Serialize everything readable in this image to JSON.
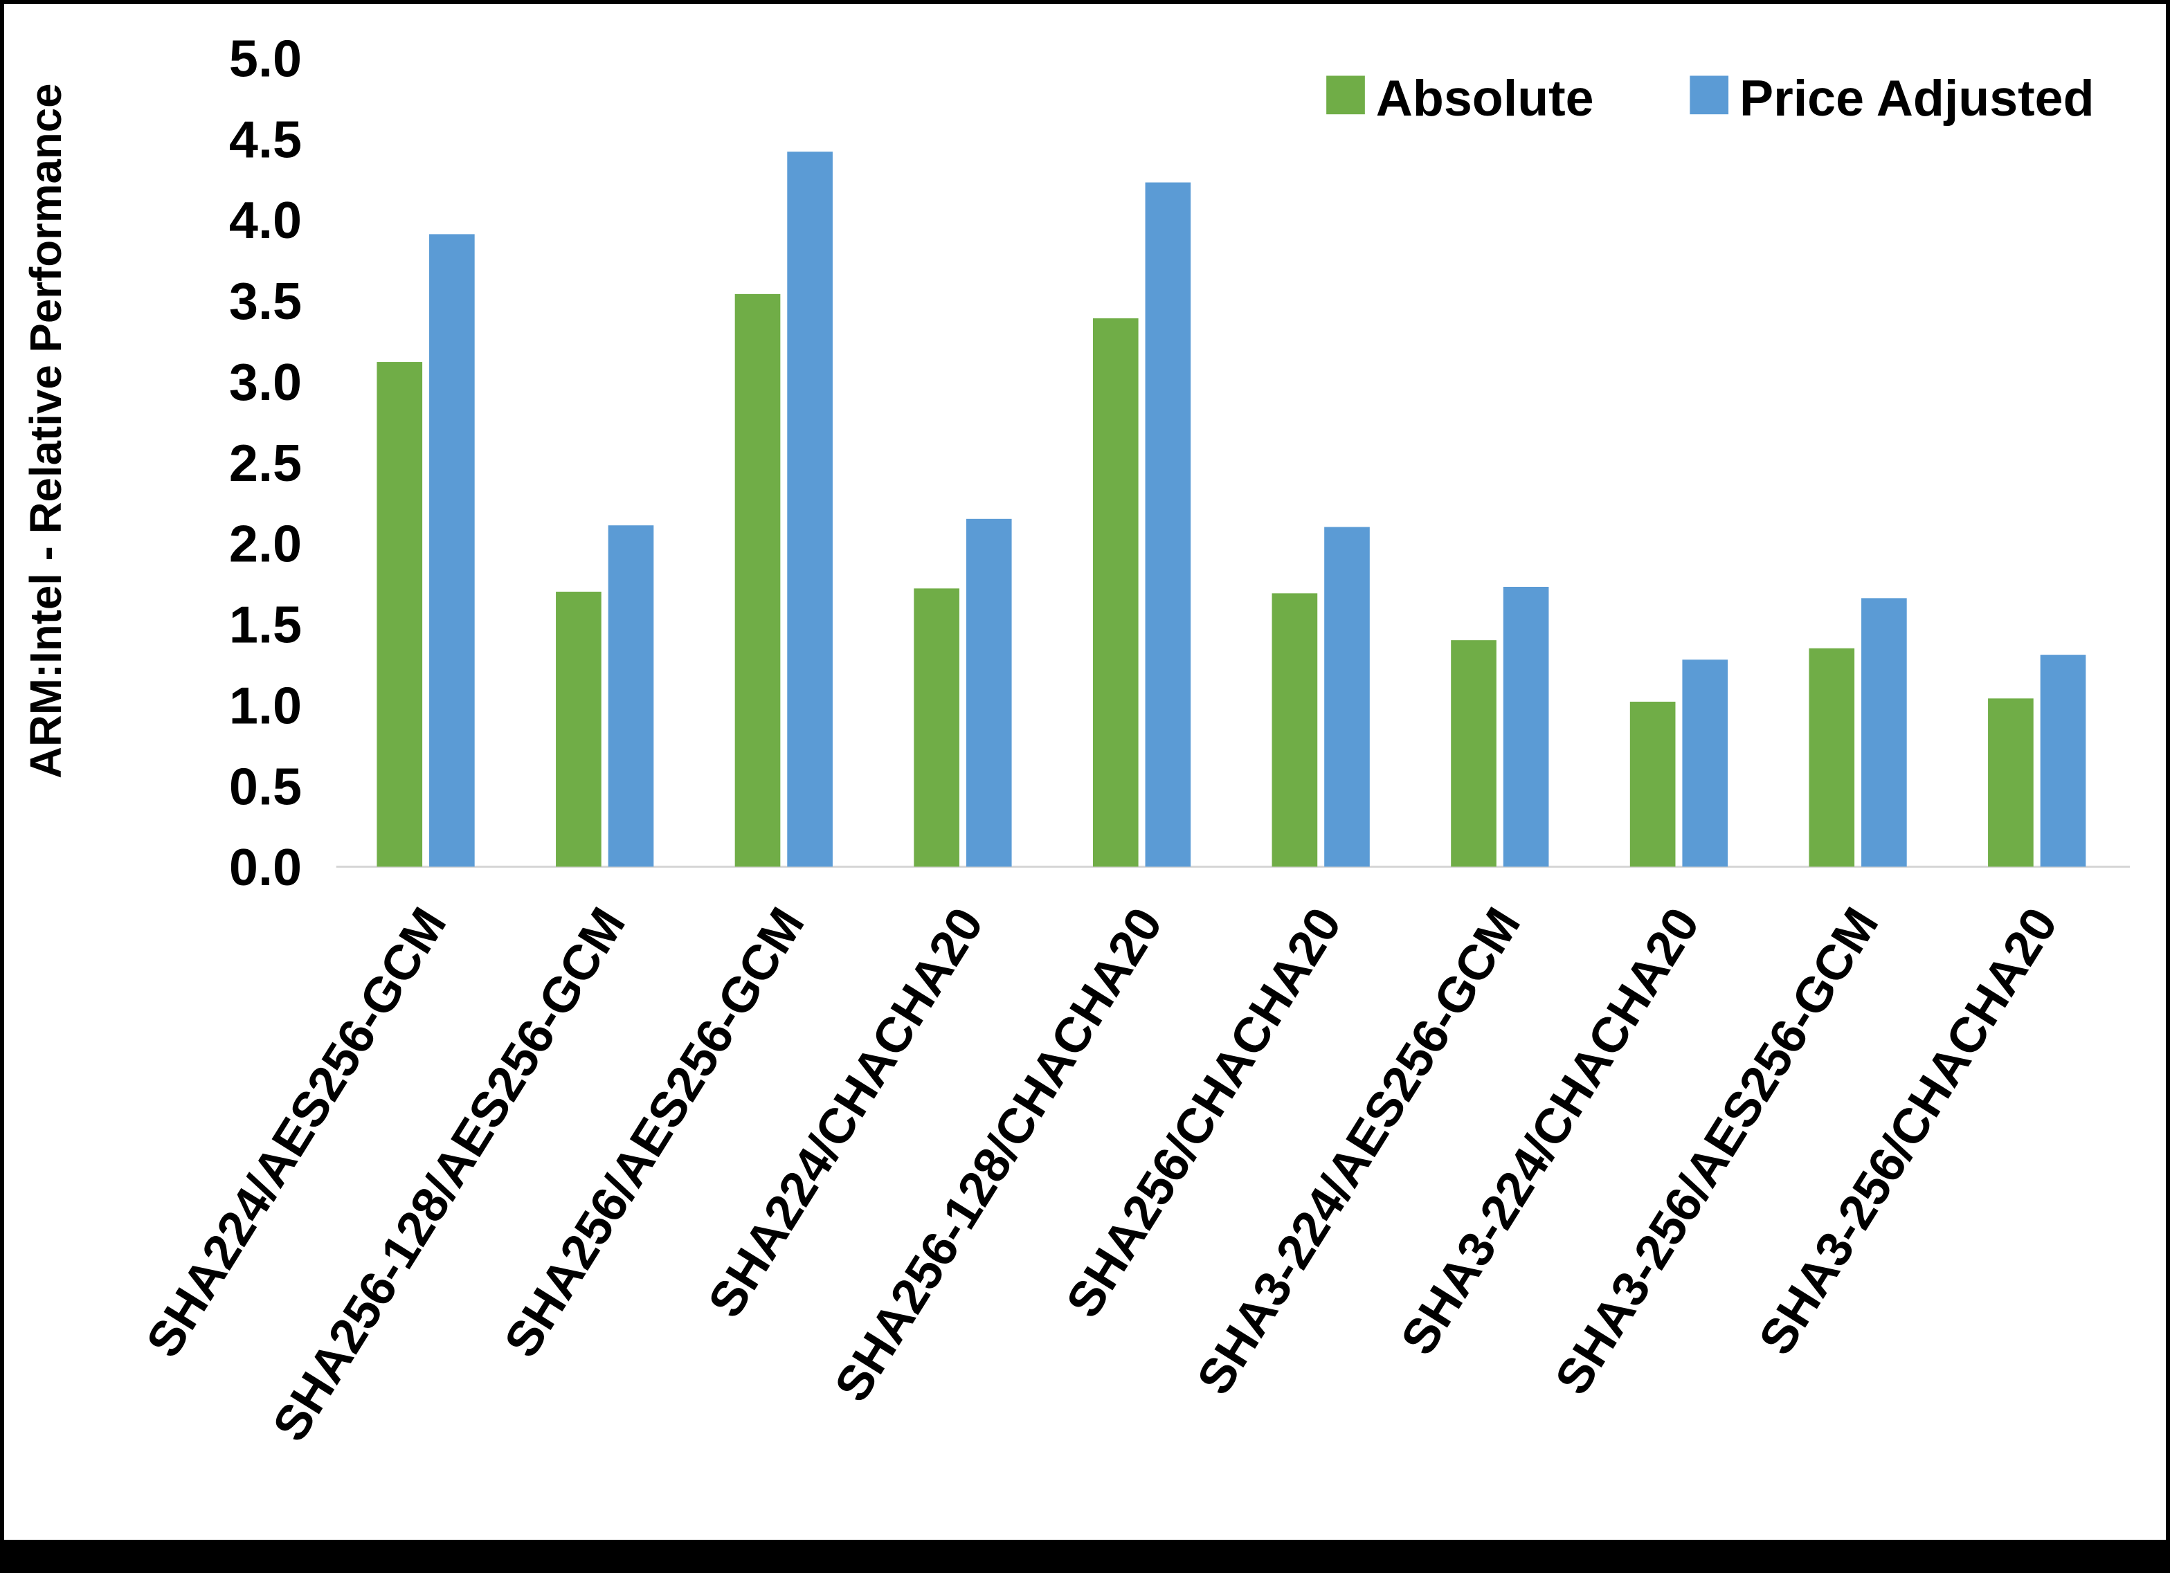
{
  "chart_data": {
    "type": "bar",
    "title": "",
    "ylabel": "ARM:Intel - Relative Performance",
    "xlabel": "",
    "ylim": [
      0.0,
      5.0
    ],
    "ytick_step": 0.5,
    "ytick_decimals": 1,
    "grid": false,
    "legend_position": "top-right",
    "axis_line_color": "#D6D6D6",
    "text_color": "#000000",
    "categories": [
      "SHA224/AES256-GCM",
      "SHA256-128/AES256-GCM",
      "SHA256/AES256-GCM",
      "SHA224/CHACHA20",
      "SHA256-128/CHACHA20",
      "SHA256/CHACHA20",
      "SHA3-224/AES256-GCM",
      "SHA3-224/CHACHA20",
      "SHA3-256/AES256-GCM",
      "SHA3-256/CHACHA20"
    ],
    "series": [
      {
        "name": "Absolute",
        "color": "#70AD47",
        "values": [
          3.12,
          1.7,
          3.54,
          1.72,
          3.39,
          1.69,
          1.4,
          1.02,
          1.35,
          1.04
        ]
      },
      {
        "name": "Price Adjusted",
        "color": "#5B9BD5",
        "values": [
          3.91,
          2.11,
          4.42,
          2.15,
          4.23,
          2.1,
          1.73,
          1.28,
          1.66,
          1.31
        ]
      }
    ]
  }
}
